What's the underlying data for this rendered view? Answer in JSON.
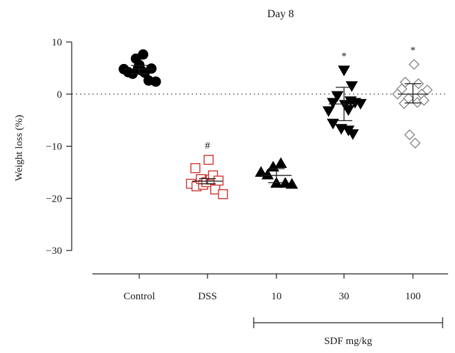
{
  "chart_data": {
    "type": "scatter",
    "title": "Day 8",
    "ylabel": "Weight loss (%)",
    "xlabel": "",
    "ylim": [
      -30,
      10
    ],
    "yticks": [
      10,
      0,
      -10,
      -20,
      -30
    ],
    "categories": [
      "Control",
      "DSS",
      "10",
      "30",
      "100"
    ],
    "group_bracket": {
      "label": "SDF mg/kg",
      "from": "10",
      "to": "100"
    },
    "reference_line": {
      "y": 0,
      "style": "dotted"
    },
    "series": [
      {
        "category": "Control",
        "marker": "circle",
        "color": "#000000",
        "filled": true,
        "points": [
          {
            "dx": -0.28,
            "y": 4.8
          },
          {
            "dx": -0.2,
            "y": 4.2
          },
          {
            "dx": -0.12,
            "y": 3.9
          },
          {
            "dx": -0.06,
            "y": 6.8
          },
          {
            "dx": 0.0,
            "y": 5.6
          },
          {
            "dx": 0.03,
            "y": 4.6
          },
          {
            "dx": 0.07,
            "y": 7.6
          },
          {
            "dx": 0.1,
            "y": 4.1
          },
          {
            "dx": 0.17,
            "y": 2.6
          },
          {
            "dx": 0.22,
            "y": 4.9
          },
          {
            "dx": 0.3,
            "y": 2.4
          },
          {
            "dx": -0.02,
            "y": 5.0
          }
        ],
        "mean": 4.8,
        "sd_low": 3.9,
        "sd_high": 5.5
      },
      {
        "category": "DSS",
        "marker": "square",
        "color": "#d0312d",
        "filled": false,
        "annotation": "#",
        "points": [
          {
            "dx": -0.3,
            "y": -17.2
          },
          {
            "dx": -0.22,
            "y": -14.2
          },
          {
            "dx": -0.2,
            "y": -17.7
          },
          {
            "dx": -0.12,
            "y": -16.3
          },
          {
            "dx": -0.08,
            "y": -17.4
          },
          {
            "dx": -0.02,
            "y": -16.9
          },
          {
            "dx": 0.02,
            "y": -12.6
          },
          {
            "dx": 0.06,
            "y": -16.4
          },
          {
            "dx": 0.1,
            "y": -15.6
          },
          {
            "dx": 0.14,
            "y": -18.3
          },
          {
            "dx": 0.2,
            "y": -16.6
          },
          {
            "dx": 0.28,
            "y": -19.2
          }
        ],
        "mean": -16.7,
        "sd_low": -17.2,
        "sd_high": -16.2
      },
      {
        "category": "10",
        "marker": "triangle-up",
        "color": "#000000",
        "filled": true,
        "points": [
          {
            "dx": -0.28,
            "y": -15.0
          },
          {
            "dx": -0.16,
            "y": -15.5
          },
          {
            "dx": -0.06,
            "y": -14.0
          },
          {
            "dx": 0.0,
            "y": -17.1
          },
          {
            "dx": 0.08,
            "y": -13.3
          },
          {
            "dx": 0.16,
            "y": -17.1
          },
          {
            "dx": 0.28,
            "y": -17.3
          }
        ],
        "mean": -15.6,
        "sd_low": -17.0,
        "sd_high": -14.3
      },
      {
        "category": "30",
        "marker": "triangle-down",
        "color": "#000000",
        "filled": true,
        "annotation": "*",
        "points": [
          {
            "dx": 0.0,
            "y": 4.6
          },
          {
            "dx": -0.12,
            "y": -0.3
          },
          {
            "dx": -0.28,
            "y": -3.2
          },
          {
            "dx": -0.2,
            "y": -1.6
          },
          {
            "dx": 0.12,
            "y": -1.3
          },
          {
            "dx": 0.2,
            "y": -1.6
          },
          {
            "dx": 0.3,
            "y": -1.8
          },
          {
            "dx": 0.14,
            "y": 1.6
          },
          {
            "dx": -0.2,
            "y": -5.6
          },
          {
            "dx": -0.05,
            "y": -6.6
          },
          {
            "dx": 0.08,
            "y": -6.9
          },
          {
            "dx": 0.16,
            "y": -7.6
          },
          {
            "dx": 0.02,
            "y": -2.0
          },
          {
            "dx": 0.08,
            "y": -3.0
          }
        ],
        "mean": -1.9,
        "sd_low": -5.1,
        "sd_high": 1.3
      },
      {
        "category": "100",
        "marker": "diamond",
        "color": "#8a8a8a",
        "filled": false,
        "annotation": "*",
        "points": [
          {
            "dx": 0.02,
            "y": 5.7
          },
          {
            "dx": -0.14,
            "y": 2.3
          },
          {
            "dx": 0.1,
            "y": 2.0
          },
          {
            "dx": -0.2,
            "y": 1.0
          },
          {
            "dx": 0.26,
            "y": 0.8
          },
          {
            "dx": 0.16,
            "y": 0.0
          },
          {
            "dx": -0.28,
            "y": 0.0
          },
          {
            "dx": -0.08,
            "y": -0.8
          },
          {
            "dx": 0.08,
            "y": -1.6
          },
          {
            "dx": -0.16,
            "y": -1.8
          },
          {
            "dx": -0.06,
            "y": -7.8
          },
          {
            "dx": 0.04,
            "y": -9.4
          },
          {
            "dx": 0.2,
            "y": -1.2
          }
        ],
        "mean": 0.0,
        "sd_low": -1.7,
        "sd_high": 2.0
      }
    ]
  }
}
